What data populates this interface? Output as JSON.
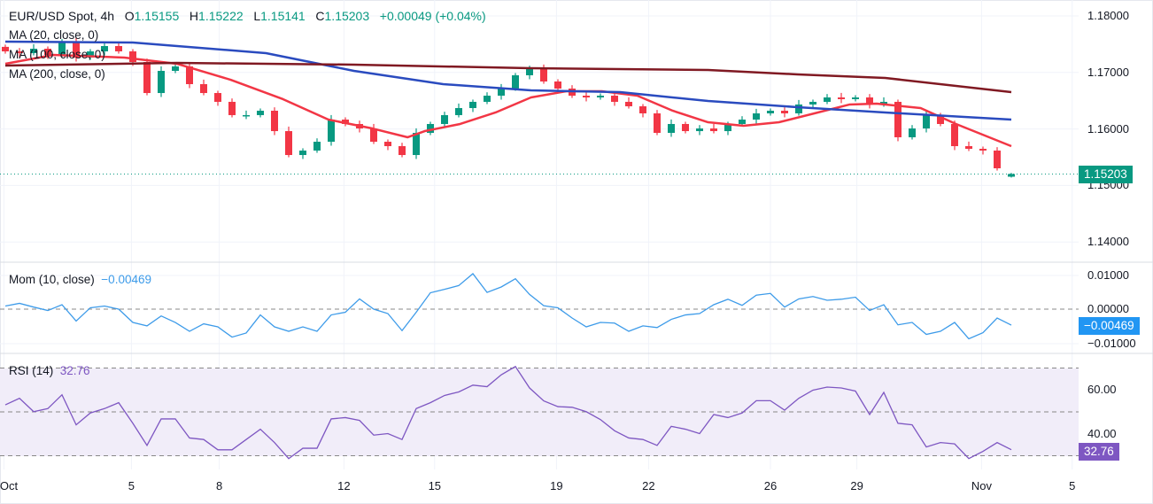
{
  "header": {
    "symbol": "EUR/USD Spot, 4h",
    "open_label": "O",
    "open": "1.15155",
    "high_label": "H",
    "high": "1.15222",
    "low_label": "L",
    "low": "1.15141",
    "close_label": "C",
    "close": "1.15203",
    "change": "+0.00049 (+0.04%)"
  },
  "legends": {
    "ma20": "MA (20, close, 0)",
    "ma100": "MA (100, close, 0)",
    "ma200": "MA (200, close, 0)",
    "mom": "Mom (10, close)",
    "mom_value": "−0.00469",
    "rsi": "RSI (14)",
    "rsi_value": "32.76"
  },
  "badges": {
    "price": "1.15203",
    "mom": "−0.00469",
    "rsi": "32.76"
  },
  "colors": {
    "up": "#089981",
    "down": "#f23645",
    "ma20": "#f23645",
    "ma100": "#2a4bbf",
    "ma200": "#801922",
    "mom": "#3d9be9",
    "rsi": "#7e57c2",
    "rsi_band": "#f1edf9"
  },
  "chart_data": [
    {
      "type": "candlestick",
      "pane": "price",
      "yticks": [
        "1.18000",
        "1.17000",
        "1.16000",
        "1.15000",
        "1.14000"
      ],
      "ylim": [
        1.1362,
        1.1828
      ],
      "last_candle": {
        "open": 1.15155,
        "high": 1.15222,
        "low": 1.15141,
        "close": 1.15203
      },
      "closes": [
        1.17373,
        1.17342,
        1.1742,
        1.1731,
        1.1753,
        1.17263,
        1.17373,
        1.17467,
        1.17373,
        1.17185,
        1.16636,
        1.17028,
        1.17107,
        1.16793,
        1.16636,
        1.1648,
        1.16245,
        1.16245,
        1.16323,
        1.15962,
        1.15539,
        1.15618,
        1.15774,
        1.16166,
        1.16088,
        1.16009,
        1.15774,
        1.15696,
        1.15539,
        1.15931,
        1.16088,
        1.16245,
        1.1637,
        1.1648,
        1.16589,
        1.16715,
        1.1695,
        1.1706,
        1.1684,
        1.16715,
        1.16589,
        1.16558,
        1.16589,
        1.1648,
        1.16401,
        1.16276,
        1.15931,
        1.16088,
        1.15962,
        1.16009,
        1.15962,
        1.16088,
        1.16166,
        1.16276,
        1.16323,
        1.16276,
        1.16433,
        1.1648,
        1.16558,
        1.16527,
        1.16558,
        1.16433,
        1.1648,
        1.15853,
        1.16009,
        1.16245,
        1.16088,
        1.15696,
        1.15649,
        1.15618,
        1.15304,
        1.15203
      ],
      "series": [
        {
          "name": "MA (20, close, 0)",
          "points": [
            [
              0,
              1.17154
            ],
            [
              3.4,
              1.1731
            ],
            [
              8.4,
              1.17263
            ],
            [
              12.1,
              1.17154
            ],
            [
              15.9,
              1.16871
            ],
            [
              19.6,
              1.16527
            ],
            [
              22.8,
              1.16166
            ],
            [
              25.9,
              1.16009
            ],
            [
              28.4,
              1.15853
            ],
            [
              29.6,
              1.15962
            ],
            [
              32.1,
              1.16088
            ],
            [
              34.6,
              1.16292
            ],
            [
              37.1,
              1.16558
            ],
            [
              39.6,
              1.16668
            ],
            [
              42.1,
              1.16668
            ],
            [
              44.6,
              1.16589
            ],
            [
              47.1,
              1.16323
            ],
            [
              49.6,
              1.16119
            ],
            [
              52.1,
              1.16056
            ],
            [
              54.6,
              1.16119
            ],
            [
              57.1,
              1.16276
            ],
            [
              59.6,
              1.16433
            ],
            [
              61.5,
              1.16448
            ],
            [
              64.6,
              1.1637
            ],
            [
              67.1,
              1.16088
            ],
            [
              71,
              1.15696
            ]
          ]
        },
        {
          "name": "MA (100, close, 0)",
          "points": [
            [
              0,
              1.17545
            ],
            [
              9,
              1.1753
            ],
            [
              18.4,
              1.17342
            ],
            [
              24.6,
              1.17028
            ],
            [
              30.9,
              1.16793
            ],
            [
              37.1,
              1.16683
            ],
            [
              43.4,
              1.16652
            ],
            [
              49.6,
              1.16495
            ],
            [
              55.9,
              1.16386
            ],
            [
              62.1,
              1.16292
            ],
            [
              71,
              1.16166
            ]
          ]
        },
        {
          "name": "MA (200, close, 0)",
          "points": [
            [
              0,
              1.17122
            ],
            [
              12.1,
              1.17169
            ],
            [
              24.6,
              1.17138
            ],
            [
              37.1,
              1.17075
            ],
            [
              49.6,
              1.17044
            ],
            [
              55.9,
              1.16966
            ],
            [
              62.1,
              1.16903
            ],
            [
              71,
              1.16652
            ]
          ]
        }
      ]
    },
    {
      "type": "line",
      "pane": "momentum",
      "name": "Mom (10, close)",
      "yticks": [
        "0.01000",
        "0.00000",
        "−0.01000"
      ],
      "ylim": [
        -0.0125,
        0.0125
      ],
      "values": [
        0.0009,
        0.0017,
        0.0006,
        -0.0004,
        0.0013,
        -0.0035,
        0.0004,
        0.0009,
        0,
        -0.0039,
        -0.0049,
        -0.002,
        -0.0039,
        -0.0065,
        -0.0043,
        -0.0052,
        -0.0082,
        -0.007,
        -0.0017,
        -0.0052,
        -0.0065,
        -0.0052,
        -0.0065,
        -0.0017,
        -0.0009,
        0.003,
        0,
        -0.0013,
        -0.0063,
        -0.0009,
        0.0048,
        0.0058,
        0.0069,
        0.0104,
        0.0049,
        0.0065,
        0.0089,
        0.0043,
        0.001,
        0.0004,
        -0.0026,
        -0.0052,
        -0.0039,
        -0.0041,
        -0.0065,
        -0.0049,
        -0.0054,
        -0.003,
        -0.0017,
        -0.0013,
        0.0013,
        0.0029,
        0.0011,
        0.0041,
        0.0046,
        0.0006,
        0.003,
        0.0037,
        0.0026,
        0.0029,
        0.0035,
        -0.0004,
        0.0013,
        -0.0046,
        -0.0039,
        -0.0074,
        -0.0065,
        -0.0039,
        -0.0087,
        -0.0069,
        -0.0026,
        -0.00469
      ]
    },
    {
      "type": "line",
      "pane": "rsi",
      "name": "RSI (14)",
      "yticks": [
        "60.00",
        "40.00"
      ],
      "bands": [
        30,
        50,
        70
      ],
      "values": [
        53.2,
        56.2,
        50.1,
        51.5,
        57.8,
        44.1,
        49.5,
        51.5,
        54.2,
        44.8,
        34.7,
        46.8,
        46.8,
        38.1,
        37.4,
        32.7,
        32.7,
        37.4,
        42.1,
        36.0,
        28.7,
        33.4,
        33.4,
        46.8,
        47.4,
        46.1,
        39.4,
        40.1,
        37.4,
        51.5,
        54.2,
        57.5,
        59.1,
        62.2,
        61.5,
        66.9,
        70.7,
        60.9,
        55.0,
        52.4,
        52.1,
        50.1,
        46.5,
        41.4,
        38.1,
        37.4,
        34.7,
        43.4,
        42.1,
        40.1,
        48.8,
        47.4,
        49.5,
        55.1,
        55.1,
        50.8,
        56.2,
        59.9,
        61.3,
        60.9,
        59.5,
        48.8,
        58.9,
        44.8,
        44.1,
        34.0,
        36.0,
        35.4,
        28.7,
        32.0,
        36.0,
        32.76
      ]
    }
  ],
  "time_axis": [
    {
      "label": "Oct",
      "index": -0.1
    },
    {
      "label": "5",
      "index": 8.9
    },
    {
      "label": "8",
      "index": 15.1
    },
    {
      "label": "12",
      "index": 23.9
    },
    {
      "label": "15",
      "index": 30.3
    },
    {
      "label": "19",
      "index": 38.9
    },
    {
      "label": "22",
      "index": 45.4
    },
    {
      "label": "26",
      "index": 54.0
    },
    {
      "label": "29",
      "index": 60.1
    },
    {
      "label": "Nov",
      "index": 68.9
    },
    {
      "label": "5",
      "index": 75.3
    }
  ]
}
